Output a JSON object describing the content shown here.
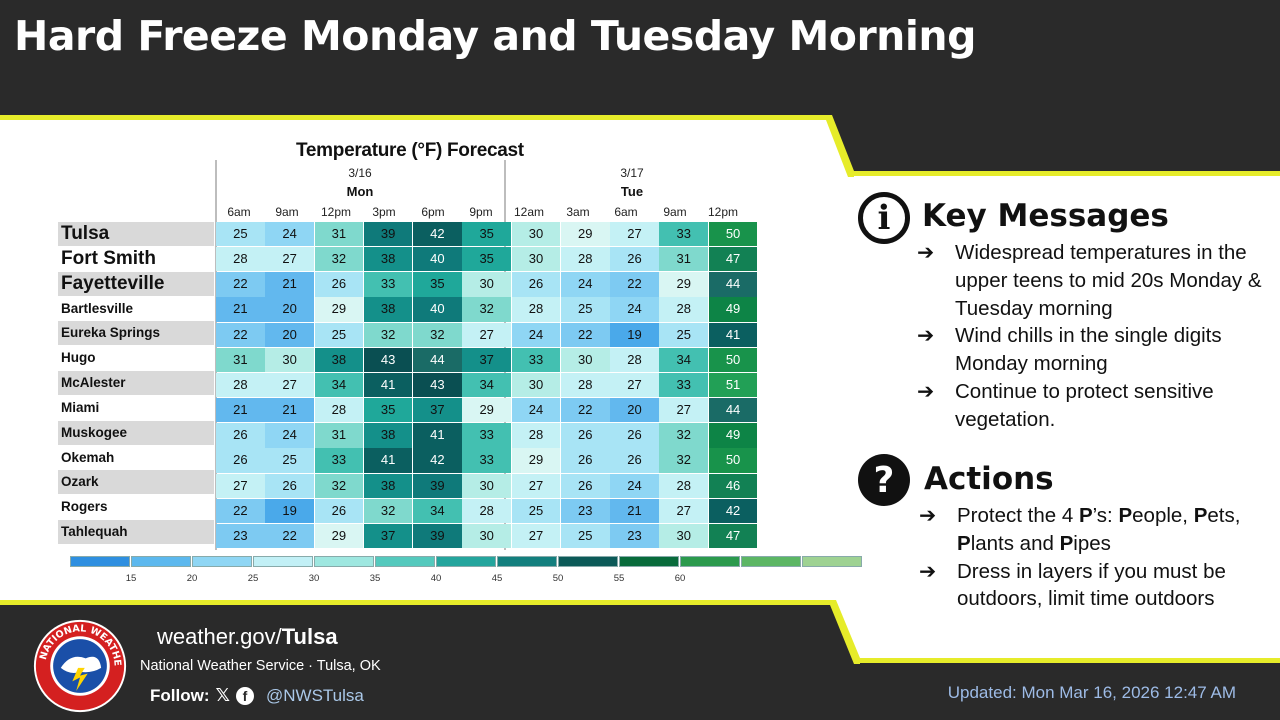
{
  "header": {
    "title": "Hard Freeze Monday and Tuesday Morning"
  },
  "chart_data": {
    "type": "table",
    "title": "Temperature (°F) Forecast",
    "days": [
      {
        "date": "3/16",
        "name": "Mon"
      },
      {
        "date": "3/17",
        "name": "Tue"
      }
    ],
    "hours": [
      "6am",
      "9am",
      "12pm",
      "3pm",
      "6pm",
      "9pm",
      "12am",
      "3am",
      "6am",
      "9am",
      "12pm"
    ],
    "cities": [
      "Tulsa",
      "Fort Smith",
      "Fayetteville",
      "Bartlesville",
      "Eureka Springs",
      "Hugo",
      "McAlester",
      "Miami",
      "Muskogee",
      "Okemah",
      "Ozark",
      "Rogers",
      "Tahlequah"
    ],
    "values": [
      [
        25,
        24,
        31,
        39,
        42,
        35,
        30,
        29,
        27,
        33,
        50
      ],
      [
        28,
        27,
        32,
        38,
        40,
        35,
        30,
        28,
        26,
        31,
        47
      ],
      [
        22,
        21,
        26,
        33,
        35,
        30,
        26,
        24,
        22,
        29,
        44
      ],
      [
        21,
        20,
        29,
        38,
        40,
        32,
        28,
        25,
        24,
        28,
        49
      ],
      [
        22,
        20,
        25,
        32,
        32,
        27,
        24,
        22,
        19,
        25,
        41
      ],
      [
        31,
        30,
        38,
        43,
        44,
        37,
        33,
        30,
        28,
        34,
        50
      ],
      [
        28,
        27,
        34,
        41,
        43,
        34,
        30,
        28,
        27,
        33,
        51
      ],
      [
        21,
        21,
        28,
        35,
        37,
        29,
        24,
        22,
        20,
        27,
        44
      ],
      [
        26,
        24,
        31,
        38,
        41,
        33,
        28,
        26,
        26,
        32,
        49
      ],
      [
        26,
        25,
        33,
        41,
        42,
        33,
        29,
        26,
        26,
        32,
        50
      ],
      [
        27,
        26,
        32,
        38,
        39,
        30,
        27,
        26,
        24,
        28,
        46
      ],
      [
        22,
        19,
        26,
        32,
        34,
        28,
        25,
        23,
        21,
        27,
        42
      ],
      [
        23,
        22,
        29,
        37,
        39,
        30,
        27,
        25,
        23,
        30,
        47
      ]
    ],
    "scale_ticks": [
      "15",
      "20",
      "25",
      "30",
      "35",
      "40",
      "45",
      "50",
      "55",
      "60"
    ],
    "scale_colors": [
      "#2e8fe0",
      "#5cb8ee",
      "#8fd6f4",
      "#c2f0f6",
      "#9ee7e0",
      "#54c9bd",
      "#24a59d",
      "#137f7e",
      "#0c5a58",
      "#086b3b",
      "#2b9a4d",
      "#5cb664",
      "#9ed292"
    ]
  },
  "key_messages": {
    "heading": "Key Messages",
    "items": [
      "Widespread temperatures in the upper teens to mid 20s Monday & Tuesday morning",
      "Wind chills in the single digits Monday morning",
      "Continue to protect sensitive vegetation."
    ]
  },
  "actions": {
    "heading": "Actions",
    "item1": {
      "p1": "Protect the 4 ",
      "bold_p": "P",
      "p2": "’s: ",
      "P1": "P",
      "t1": "eople,",
      "P2": "P",
      "t2": "ets, ",
      "P3": "P",
      "t3": "lants and ",
      "P4": "P",
      "t4": "ipes"
    },
    "item2": "Dress in layers if you must be outdoors, limit time outdoors"
  },
  "footer": {
    "url_prefix": "weather.gov/",
    "url_bold": "Tulsa",
    "org": "National Weather Service · Tulsa, OK",
    "follow_label": "Follow:",
    "x_icon": "𝕏",
    "fb_icon": "f",
    "handle": "@NWSTulsa",
    "updated": "Updated: Mon Mar 16, 2026 12:47 AM",
    "logo_text": "NATIONAL WEATHER SERVICE"
  },
  "icons": {
    "info": "i",
    "help": "?",
    "arrow": "➔"
  }
}
